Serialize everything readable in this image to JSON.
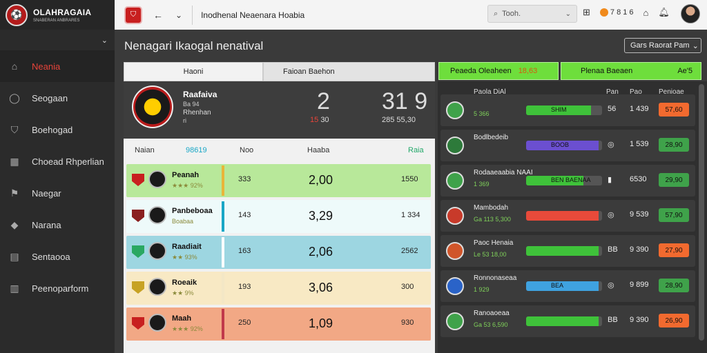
{
  "sidebar": {
    "logo_badge": "⚽",
    "logo_title": "OLAHRAGAIA",
    "logo_sub": "SNABERAN ANBRARES",
    "items": [
      {
        "label": "Neania",
        "icon": "stadium-icon",
        "glyph": "⌂",
        "active": true
      },
      {
        "label": "Seogaan",
        "icon": "ball-icon",
        "glyph": "◯"
      },
      {
        "label": "Boehogad",
        "icon": "shield-icon",
        "glyph": "⛉"
      },
      {
        "label": "Choead Rhperlian",
        "icon": "building-icon",
        "glyph": "▦"
      },
      {
        "label": "Naegar",
        "icon": "flag-icon",
        "glyph": "⚑"
      },
      {
        "label": "Narana",
        "icon": "crest-icon",
        "glyph": "◆"
      },
      {
        "label": "Sentaooa",
        "icon": "chart-icon",
        "glyph": "▤"
      },
      {
        "label": "Peenoparform",
        "icon": "table-icon",
        "glyph": "▥"
      }
    ]
  },
  "topbar": {
    "title": "Inodhenal Neaenara Hoabia",
    "search_placeholder": "Tooh.",
    "coin_value": "7 8 1 6"
  },
  "main": {
    "heading": "Nenagari Ikaogal nenatival",
    "period_select": "Gars Raorat Pam",
    "tabs": [
      "Haoni",
      "Faioan Baehon"
    ]
  },
  "match": {
    "team": "Raafaiva",
    "sub1": "Ba 94",
    "sub2": "Rhenhan",
    "sub3": "ri",
    "score_a": "2",
    "score_b": "31 9",
    "score_a_red": "15",
    "score_a_rest": "30",
    "score_b_sub": "285 55,30"
  },
  "table": {
    "headers": {
      "name": "Naian",
      "cyan": "98619",
      "mid": "Noo",
      "hd": "Haaba",
      "right": "Raia"
    },
    "rows": [
      {
        "name": "Peanah",
        "sub": "★★★ 92%",
        "c1": "333",
        "c2": "2,00",
        "c3": "1550",
        "bg": "#b8e89a",
        "bar": "#e9b53a",
        "flag": "#c81f1f"
      },
      {
        "name": "Panbeboaa",
        "sub": "Boabaa",
        "c1": "143",
        "c2": "3,29",
        "c3": "1 334",
        "bg": "#eefafa",
        "bar": "#1aa7c6",
        "flag": "#8a1f1f"
      },
      {
        "name": "Raadiait",
        "sub": "★★ 93%",
        "c1": "163",
        "c2": "2,06",
        "c3": "2562",
        "bg": "#9dd6e1",
        "bar": "#ffffff",
        "flag": "#2aa862"
      },
      {
        "name": "Roeaik",
        "sub": "★★ 9%",
        "c1": "193",
        "c2": "3,06",
        "c3": "300",
        "bg": "#f8e9c4",
        "bar": "#f3e7c6",
        "flag": "#c7a224"
      },
      {
        "name": "Maah",
        "sub": "★★★ 92%",
        "c1": "250",
        "c2": "1,09",
        "c3": "930",
        "bg": "#f2a885",
        "bar": "#c0394a",
        "flag": "#c81f1f"
      }
    ]
  },
  "right": {
    "btn1_label": "Peaeda Oleaheen",
    "btn1_accent": "18,63",
    "btn2_label": "Plenaa Baeaen",
    "btn2_right": "Ae'5",
    "head": "Paola DiAl",
    "h1": "Pan",
    "h2": "Pao",
    "h3": "Penioae",
    "rows": [
      {
        "t": "",
        "s": "5 366",
        "bar": "SHIM",
        "barColor": "#3fc23a",
        "fill": 0.85,
        "val": "56",
        "val2": "1 439",
        "pill": "57,60",
        "pillColor": "#f26a2f",
        "logo": "#3fa24a"
      },
      {
        "t": "Bodlbedeib",
        "s": "",
        "bar": "BOOB",
        "barColor": "#6b4fd0",
        "fill": 0.95,
        "val": "◎",
        "val2": "1 539",
        "pill": "28,90",
        "pillColor": "#3fa24a",
        "logo": "#2d7a3a"
      },
      {
        "t": "Rodaaeaabia NAAI",
        "s": "1 369",
        "bar": "BEN BAENAA",
        "barColor": "#3fc23a",
        "fill": 0.75,
        "val": "▮",
        "val2": "6530",
        "pill": "29,90",
        "pillColor": "#3fa24a",
        "logo": "#3fa24a"
      },
      {
        "t": "Mambodah",
        "s": "Ga 113 5,300",
        "bar": "",
        "barColor": "#e84a3a",
        "fill": 0.95,
        "val": "◎",
        "val2": "9 539",
        "pill": "57,90",
        "pillColor": "#3fa24a",
        "logo": "#c83a2a"
      },
      {
        "t": "Paoc Henaia",
        "s": "Le 53 18,00",
        "bar": "",
        "barColor": "#3fc23a",
        "fill": 0.95,
        "val": "BB",
        "val2": "9 390",
        "pill": "27,90",
        "pillColor": "#f26a2f",
        "logo": "#d0552a"
      },
      {
        "t": "Ronnonaseaa",
        "s": "1 929",
        "bar": "BEA",
        "barColor": "#3fa2e0",
        "fill": 0.95,
        "val": "◎",
        "val2": "9 899",
        "pill": "28,90",
        "pillColor": "#3fa24a",
        "logo": "#2a63c8"
      },
      {
        "t": "Ranoaoeaa",
        "s": "Ga 53 6,590",
        "bar": "",
        "barColor": "#3fc23a",
        "fill": 0.95,
        "val": "BB",
        "val2": "9 390",
        "pill": "26,90",
        "pillColor": "#f26a2f",
        "logo": "#3fa24a"
      }
    ]
  }
}
